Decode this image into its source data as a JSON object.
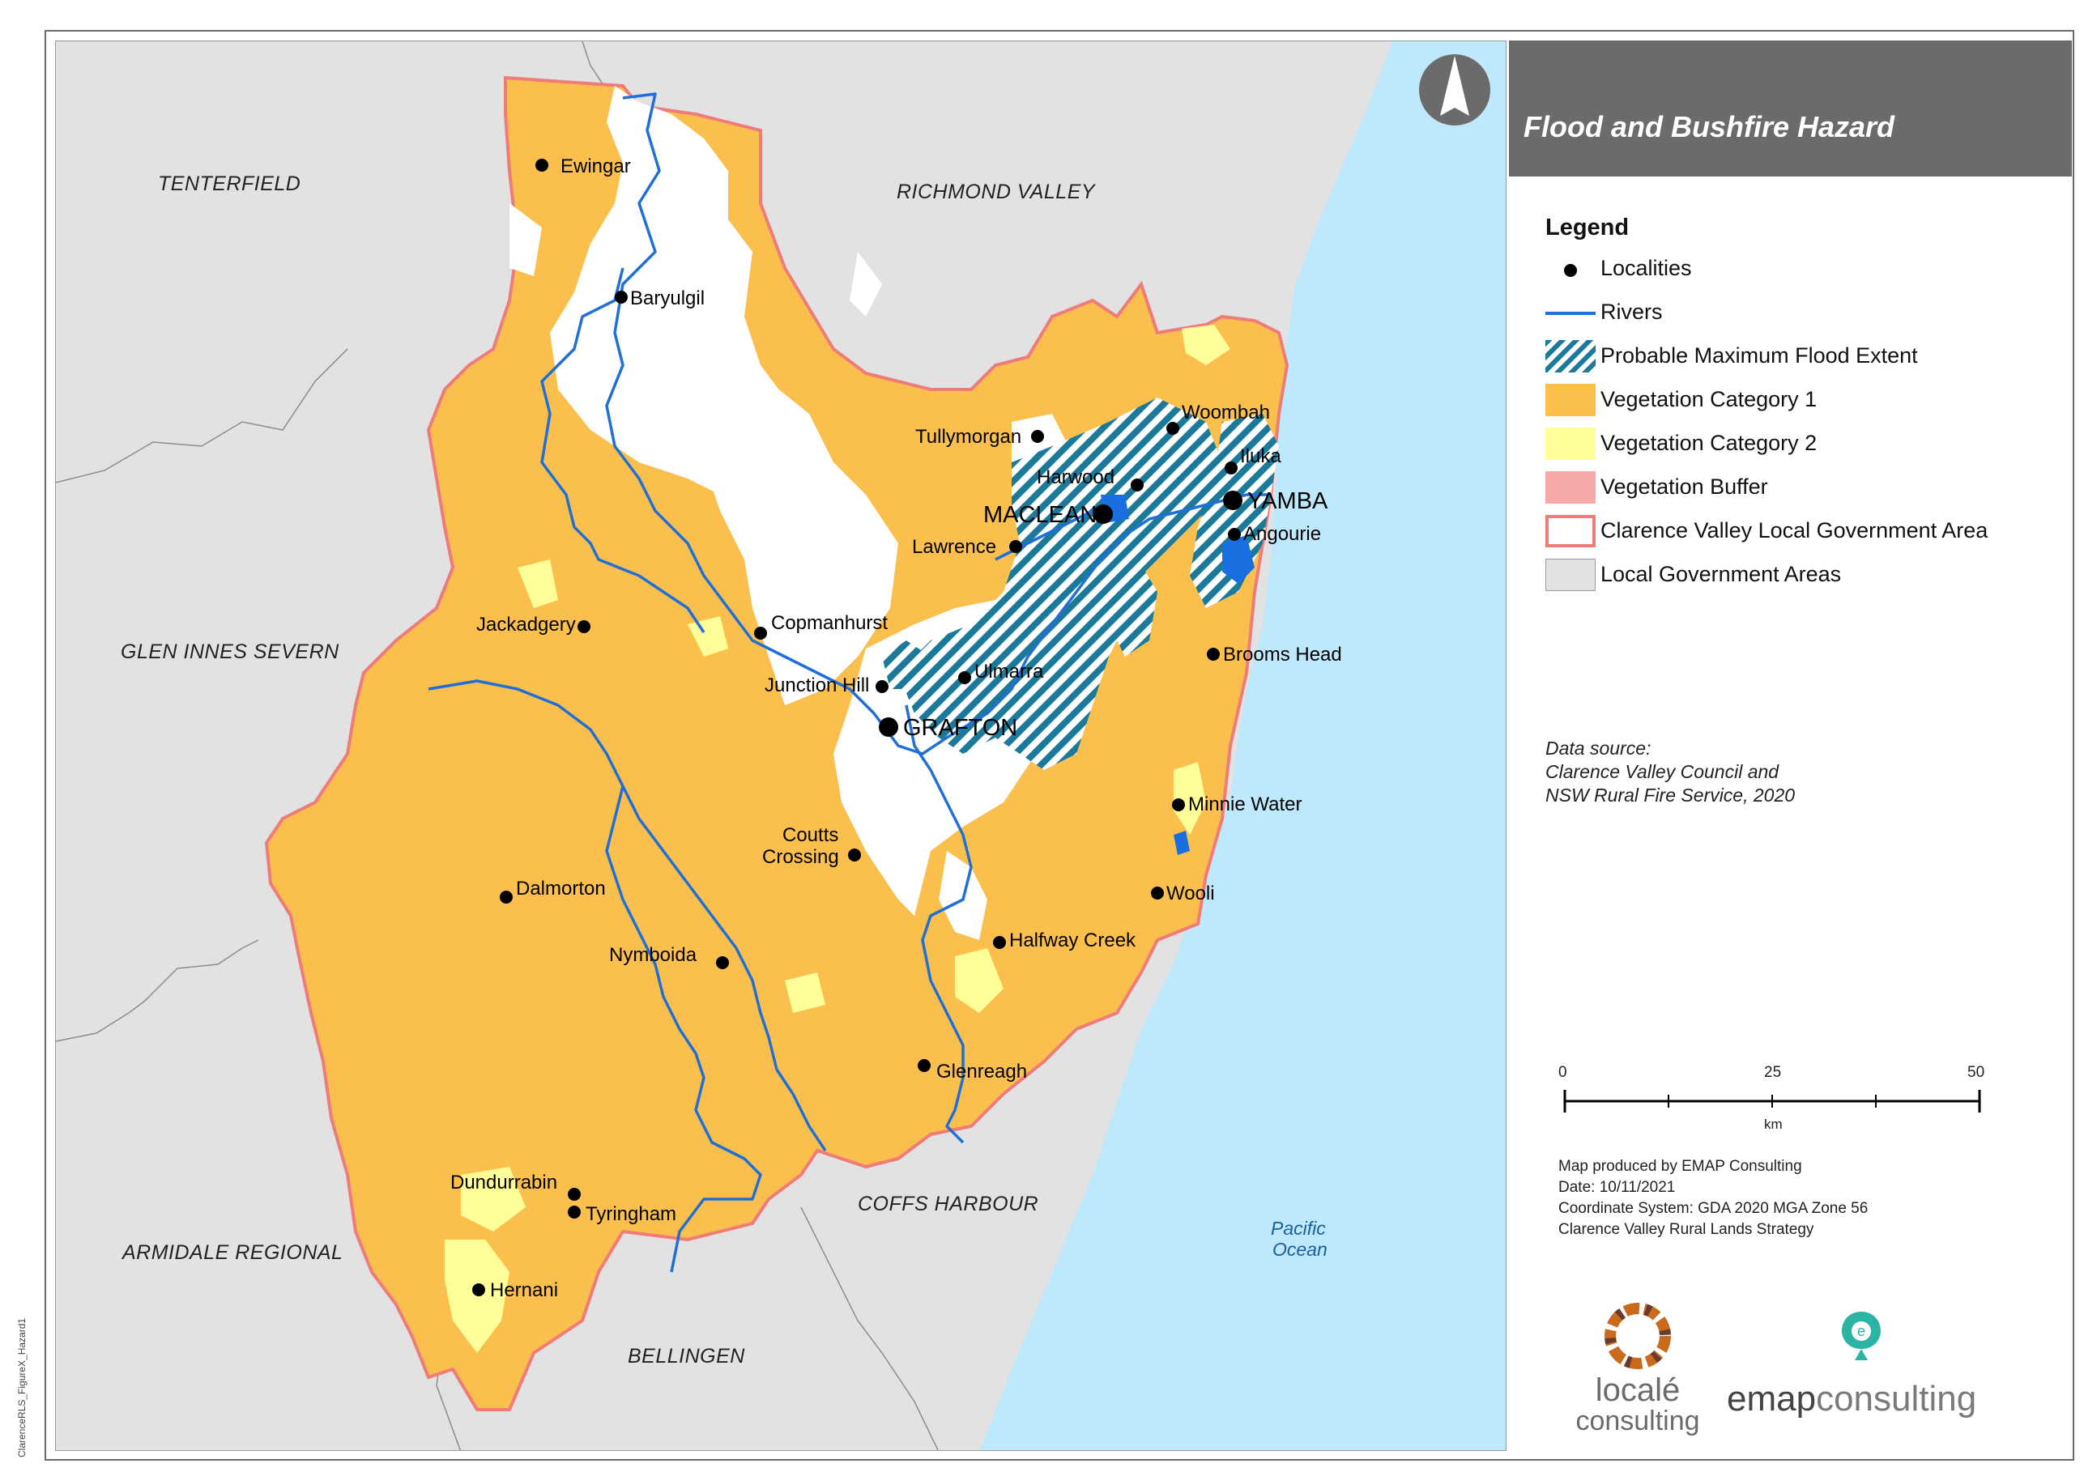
{
  "title": "Flood and Bushfire Hazard",
  "legend": {
    "heading": "Legend",
    "items": [
      {
        "label": "Localities",
        "symbol": "dot",
        "color": "#000000"
      },
      {
        "label": "Rivers",
        "symbol": "line",
        "color": "#1f6fd6"
      },
      {
        "label": "Probable Maximum Flood Extent",
        "symbol": "hatch",
        "color": "#1b7a9a"
      },
      {
        "label": "Vegetation Category 1",
        "symbol": "fill",
        "color": "#fbbf4d"
      },
      {
        "label": "Vegetation Category 2",
        "symbol": "fill",
        "color": "#ffff99"
      },
      {
        "label": "Vegetation Buffer",
        "symbol": "fill",
        "color": "#f7a8a8"
      },
      {
        "label": "Clarence Valley Local Government Area",
        "symbol": "outline",
        "color": "#ef7b7b"
      },
      {
        "label": "Local Government Areas",
        "symbol": "fill-grey",
        "color": "#e2e2e2"
      }
    ]
  },
  "data_source": [
    "Data source:",
    "Clarence Valley Council and",
    "NSW Rural Fire Service, 2020"
  ],
  "scale_bar": {
    "labels": [
      "0",
      "25",
      "50"
    ],
    "unit": "km"
  },
  "credits": [
    "Map produced by EMAP Consulting",
    "Date: 10/11/2021",
    "Coordinate System: GDA 2020 MGA Zone 56",
    "Clarence Valley Rural Lands Strategy"
  ],
  "logos": {
    "locale_line1": "localé",
    "locale_line2": "consulting",
    "emap_bold": "emap",
    "emap_rest": "consulting"
  },
  "side_code": "ClarenceRLS_FigureX_Hazard1",
  "map": {
    "lgas": [
      "TENTERFIELD",
      "RICHMOND VALLEY",
      "GLEN INNES SEVERN",
      "ARMIDALE REGIONAL",
      "COFFS HARBOUR",
      "BELLINGEN"
    ],
    "ocean": [
      "Pacific",
      "Ocean"
    ],
    "towns": [
      "YAMBA",
      "MACLEAN",
      "GRAFTON"
    ],
    "localities": [
      "Ewingar",
      "Baryulgil",
      "Tullymorgan",
      "Woombah",
      "Iluka",
      "Harwood",
      "Angourie",
      "Lawrence",
      "Copmanhurst",
      "Jackadgery",
      "Junction Hill",
      "Ulmarra",
      "Brooms Head",
      "Minnie Water",
      "Coutts",
      "Crossing",
      "Wooli",
      "Dalmorton",
      "Halfway Creek",
      "Nymboida",
      "Glenreagh",
      "Dundurrabin",
      "Tyringham",
      "Hernani"
    ]
  },
  "colors": {
    "ocean": "#bee8fb",
    "veg1": "#fbbf4d",
    "veg2": "#ffff99",
    "lga_grey": "#e2e2e2",
    "lga_border": "#ef7b7b",
    "river": "#1f6fd6",
    "flood": "#1b7a9a"
  }
}
